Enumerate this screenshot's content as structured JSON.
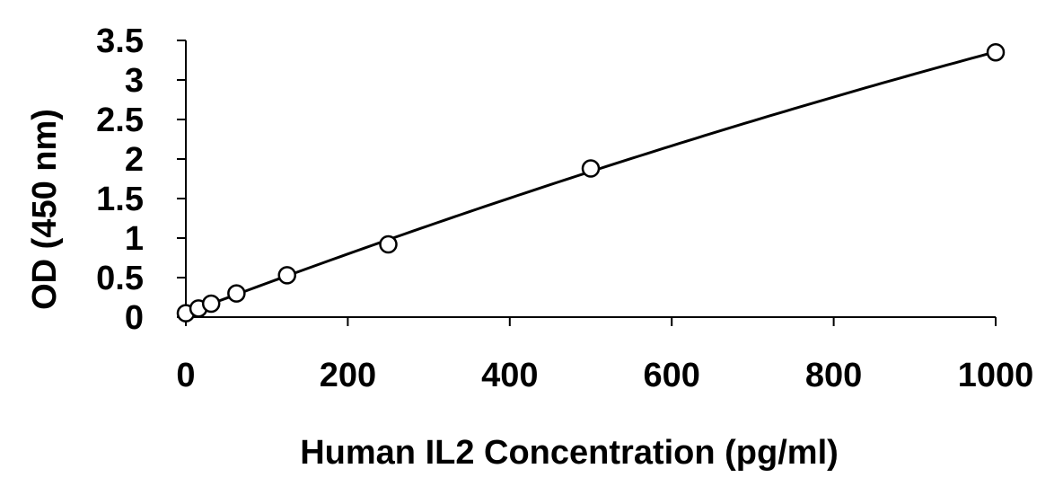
{
  "chart_data": {
    "type": "scatter",
    "xlabel": "Human IL2 Concentration (pg/ml)",
    "ylabel": "OD (450 nm)",
    "xlim": [
      0,
      1000
    ],
    "ylim": [
      0,
      3.5
    ],
    "x_ticks": [
      0,
      200,
      400,
      600,
      800,
      1000
    ],
    "y_ticks": [
      0,
      0.5,
      1,
      1.5,
      2,
      2.5,
      3,
      3.5
    ],
    "x_tick_labels": [
      "0",
      "200",
      "400",
      "600",
      "800",
      "1000"
    ],
    "y_tick_labels": [
      "0",
      "0.5",
      "1",
      "1.5",
      "2",
      "2.5",
      "3",
      "3.5"
    ],
    "grid": false,
    "series": [
      {
        "x": [
          0,
          15.6,
          31.25,
          62.5,
          125,
          250,
          500,
          1000
        ],
        "y": [
          0.05,
          0.11,
          0.17,
          0.3,
          0.53,
          0.92,
          1.88,
          3.35
        ],
        "marker": "open-circle",
        "trendline": true
      }
    ],
    "colors": {
      "marks": "#000000"
    }
  }
}
